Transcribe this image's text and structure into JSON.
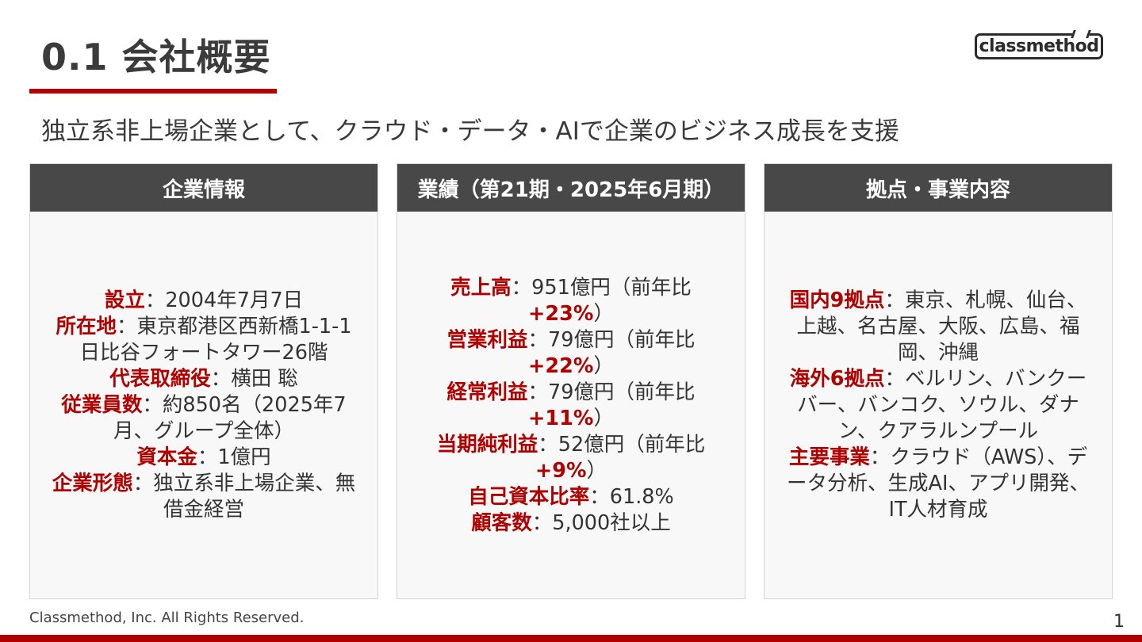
{
  "title": "0.1 会社概要",
  "logo_text": "classmethod",
  "subtitle": "独立系非上場企業として、クラウド・データ・AIで企業のビジネス成長を支援",
  "colors": {
    "accent": "#b00000",
    "header_bg": "#484848",
    "card_bg": "#f8f8f8"
  },
  "cards": [
    {
      "header": "企業情報",
      "items": [
        {
          "key": "設立",
          "value": "：2004年7月7日"
        },
        {
          "key": "所在地",
          "value": "：東京都港区西新橋1-1-1 日比谷フォートタワー26階"
        },
        {
          "key": "代表取締役",
          "value": "：横田 聡"
        },
        {
          "key": "従業員数",
          "value": "：約850名（2025年7月、グループ全体）"
        },
        {
          "key": "資本金",
          "value": "：1億円"
        },
        {
          "key": "企業形態",
          "value": "：独立系非上場企業、無借金経営"
        }
      ]
    },
    {
      "header": "業績（第21期・2025年6月期）",
      "items": [
        {
          "key": "売上高",
          "value": "：951億円（前年比",
          "pct": "+23%",
          "tail": "）"
        },
        {
          "key": "営業利益",
          "value": "：79億円（前年比",
          "pct": "+22%",
          "tail": "）"
        },
        {
          "key": "経常利益",
          "value": "：79億円（前年比",
          "pct": "+11%",
          "tail": "）"
        },
        {
          "key": "当期純利益",
          "value": "：52億円（前年比",
          "pct": "+9%",
          "tail": "）"
        },
        {
          "key": "自己資本比率",
          "value": "：61.8%"
        },
        {
          "key": "顧客数",
          "value": "：5,000社以上"
        }
      ]
    },
    {
      "header": "拠点・事業内容",
      "items": [
        {
          "key": "国内9拠点",
          "value": "：東京、札幌、仙台、上越、名古屋、大阪、広島、福岡、沖縄"
        },
        {
          "key": "海外6拠点",
          "value": "：ベルリン、バンクーバー、バンコク、ソウル、ダナン、クアラルンプール"
        },
        {
          "key": "主要事業",
          "value": "：クラウド（AWS）、データ分析、生成AI、アプリ開発、IT人材育成"
        }
      ]
    }
  ],
  "footer": "Classmethod, Inc. All Rights Reserved.",
  "page_number": "1"
}
